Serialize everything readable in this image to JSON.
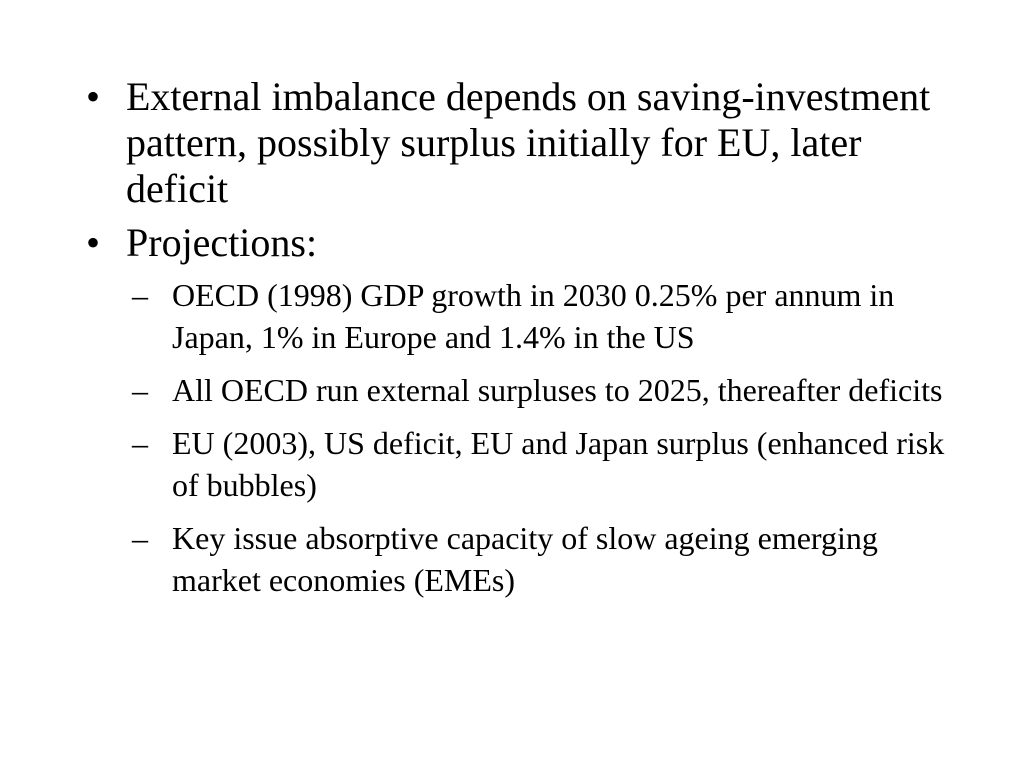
{
  "bullet_symbol": "•",
  "dash_symbol": "–",
  "items": [
    {
      "text": "External imbalance depends on saving-investment pattern, possibly surplus initially for EU, later deficit"
    },
    {
      "text": "Projections:"
    }
  ],
  "subitems": [
    {
      "text": "OECD (1998) GDP growth in 2030 0.25% per annum in Japan, 1% in Europe and 1.4% in the US"
    },
    {
      "text": "All OECD run external surpluses to 2025, thereafter deficits"
    },
    {
      "text": "EU (2003), US deficit, EU and Japan surplus (enhanced risk of bubbles)"
    },
    {
      "text": "Key issue absorptive capacity of slow ageing emerging market economies (EMEs)"
    }
  ]
}
